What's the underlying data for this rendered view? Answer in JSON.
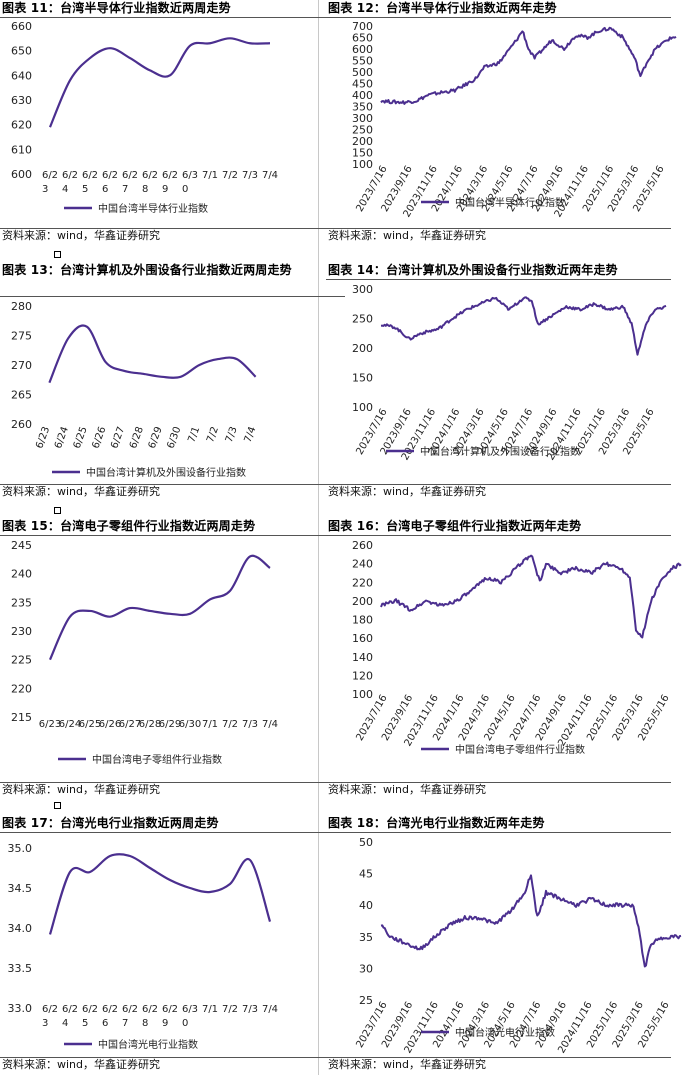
{
  "source_text": "资料来源：wind，华鑫证券研究",
  "line_color": "#4b2f8f",
  "charts": [
    {
      "id": "c11",
      "title": "图表 11：台湾半导体行业指数近两周走势",
      "chart_data": {
        "type": "line",
        "title": "图表 11：台湾半导体行业指数近两周走势",
        "categories": [
          "6/23",
          "6/24",
          "6/25",
          "6/26",
          "6/27",
          "6/28",
          "6/29",
          "6/30",
          "7/1",
          "7/2",
          "7/3",
          "7/4"
        ],
        "series": [
          {
            "name": "中国台湾半导体行业指数",
            "values": [
              619,
              638,
              647,
              651,
              647,
              642,
              640,
              652,
              653,
              655,
              653,
              653
            ]
          }
        ],
        "ylim": [
          600,
          660
        ],
        "yticks": [
          600,
          610,
          620,
          630,
          640,
          650,
          660
        ],
        "tick_labels": [
          [
            "6/2",
            "3"
          ],
          [
            "6/2",
            "4"
          ],
          [
            "6/2",
            "5"
          ],
          [
            "6/2",
            "6"
          ],
          [
            "6/2",
            "7"
          ],
          [
            "6/2",
            "8"
          ],
          [
            "6/2",
            "9"
          ],
          [
            "6/3",
            "0"
          ],
          [
            "7/1",
            ""
          ],
          [
            "7/2",
            ""
          ],
          [
            "7/3",
            ""
          ],
          [
            "7/4",
            ""
          ]
        ],
        "legend": "中国台湾半导体行业指数"
      }
    },
    {
      "id": "c12",
      "title": "图表 12：台湾半导体行业指数近两年走势",
      "chart_data": {
        "type": "line",
        "title": "图表 12：台湾半导体行业指数近两年走势",
        "x_date_labels": [
          "2023/7/16",
          "2023/9/16",
          "2023/11/16",
          "2024/1/16",
          "2024/3/16",
          "2024/5/16",
          "2024/7/16",
          "2024/9/16",
          "2024/11/16",
          "2025/1/16",
          "2025/3/16",
          "2025/5/16"
        ],
        "ylim": [
          100,
          700
        ],
        "yticks": [
          100,
          150,
          200,
          250,
          300,
          350,
          400,
          450,
          500,
          550,
          600,
          650,
          700
        ],
        "series": [
          {
            "name": "中国台湾半导体行业指数",
            "points": [
              [
                0,
                375
              ],
              [
                0.04,
                370
              ],
              [
                0.08,
                368
              ],
              [
                0.12,
                375
              ],
              [
                0.16,
                400
              ],
              [
                0.2,
                410
              ],
              [
                0.25,
                420
              ],
              [
                0.28,
                440
              ],
              [
                0.32,
                470
              ],
              [
                0.35,
                520
              ],
              [
                0.4,
                540
              ],
              [
                0.43,
                590
              ],
              [
                0.46,
                640
              ],
              [
                0.48,
                680
              ],
              [
                0.5,
                600
              ],
              [
                0.52,
                560
              ],
              [
                0.55,
                600
              ],
              [
                0.58,
                640
              ],
              [
                0.62,
                600
              ],
              [
                0.66,
                660
              ],
              [
                0.7,
                650
              ],
              [
                0.74,
                680
              ],
              [
                0.78,
                690
              ],
              [
                0.82,
                650
              ],
              [
                0.86,
                560
              ],
              [
                0.88,
                480
              ],
              [
                0.9,
                540
              ],
              [
                0.93,
                600
              ],
              [
                0.97,
                640
              ],
              [
                1.0,
                655
              ]
            ]
          }
        ],
        "legend": "中国台湾半导体行业指数"
      }
    },
    {
      "id": "c13",
      "title": "图表 13：台湾计算机及外围设备行业指数近两周走势",
      "chart_data": {
        "type": "line",
        "title": "图表 13：台湾计算机及外围设备行业指数近两周走势",
        "categories": [
          "6/23",
          "6/24",
          "6/25",
          "6/26",
          "6/27",
          "6/28",
          "6/29",
          "6/30",
          "7/1",
          "7/2",
          "7/3",
          "7/4"
        ],
        "series": [
          {
            "name": "中国台湾计算机及外围设备行业指数",
            "values": [
              267,
              274.5,
              276.5,
              270.5,
              269,
              268.5,
              268,
              268,
              270,
              271,
              271,
              268
            ]
          }
        ],
        "ylim": [
          260,
          280
        ],
        "yticks": [
          260,
          265,
          270,
          275,
          280
        ],
        "tick_labels": [
          [
            "6/23"
          ],
          [
            "6/24"
          ],
          [
            "6/25"
          ],
          [
            "6/26"
          ],
          [
            "6/27"
          ],
          [
            "6/28"
          ],
          [
            "6/29"
          ],
          [
            "6/30"
          ],
          [
            "7/1"
          ],
          [
            "7/2"
          ],
          [
            "7/3"
          ],
          [
            "7/4"
          ]
        ],
        "legend": "中国台湾计算机及外围设备行业指数"
      }
    },
    {
      "id": "c14",
      "title": "图表 14：台湾计算机及外围设备行业指数近两年走势",
      "chart_data": {
        "type": "line",
        "title": "图表 14：台湾计算机及外围设备行业指数近两年走势",
        "x_date_labels": [
          "2023/7/16",
          "2023/9/16",
          "2023/11/16",
          "2024/1/16",
          "2024/3/16",
          "2024/5/16",
          "2024/7/16",
          "2024/9/16",
          "2024/11/16",
          "2025/1/16",
          "2025/3/16",
          "2025/5/16"
        ],
        "ylim": [
          100,
          300
        ],
        "yticks": [
          100,
          150,
          200,
          250,
          300
        ],
        "series": [
          {
            "name": "中国台湾计算机及外围设备行业指数",
            "points": [
              [
                0,
                240
              ],
              [
                0.05,
                235
              ],
              [
                0.1,
                215
              ],
              [
                0.14,
                225
              ],
              [
                0.2,
                232
              ],
              [
                0.25,
                250
              ],
              [
                0.3,
                265
              ],
              [
                0.35,
                275
              ],
              [
                0.4,
                285
              ],
              [
                0.45,
                265
              ],
              [
                0.5,
                285
              ],
              [
                0.53,
                280
              ],
              [
                0.55,
                240
              ],
              [
                0.6,
                255
              ],
              [
                0.65,
                270
              ],
              [
                0.7,
                265
              ],
              [
                0.75,
                275
              ],
              [
                0.8,
                265
              ],
              [
                0.85,
                270
              ],
              [
                0.88,
                240
              ],
              [
                0.9,
                190
              ],
              [
                0.93,
                240
              ],
              [
                0.96,
                265
              ],
              [
                1.0,
                270
              ]
            ]
          }
        ],
        "legend": "中国台湾计算机及外围设备行业指数"
      }
    },
    {
      "id": "c15",
      "title": "图表 15：台湾电子零组件行业指数近两周走势",
      "chart_data": {
        "type": "line",
        "title": "图表 15：台湾电子零组件行业指数近两周走势",
        "categories": [
          "6/23",
          "6/24",
          "6/25",
          "6/26",
          "6/27",
          "6/28",
          "6/29",
          "6/30",
          "7/1",
          "7/2",
          "7/3",
          "7/4"
        ],
        "series": [
          {
            "name": "中国台湾电子零组件行业指数",
            "values": [
              225,
              232.5,
              233.5,
              232.5,
              234,
              233.5,
              233,
              233,
              235.5,
              237,
              243,
              241
            ]
          }
        ],
        "ylim": [
          215,
          245
        ],
        "yticks": [
          215,
          220,
          225,
          230,
          235,
          240,
          245
        ],
        "tick_labels": [
          [
            "6/23"
          ],
          [
            "6/24"
          ],
          [
            "6/25"
          ],
          [
            "6/26"
          ],
          [
            "6/27"
          ],
          [
            "6/28"
          ],
          [
            "6/29"
          ],
          [
            "6/30"
          ],
          [
            "7/1"
          ],
          [
            "7/2"
          ],
          [
            "7/3"
          ],
          [
            "7/4"
          ]
        ],
        "legend": "中国台湾电子零组件行业指数"
      }
    },
    {
      "id": "c16",
      "title": "图表 16：台湾电子零组件行业指数近两年走势",
      "chart_data": {
        "type": "line",
        "title": "图表 16：台湾电子零组件行业指数近两年走势",
        "x_date_labels": [
          "2023/7/16",
          "2023/9/16",
          "2023/11/16",
          "2024/1/16",
          "2024/3/16",
          "2024/5/16",
          "2024/7/16",
          "2024/9/16",
          "2024/11/16",
          "2025/1/16",
          "2025/3/16",
          "2025/5/16"
        ],
        "ylim": [
          100,
          260
        ],
        "yticks": [
          100,
          120,
          140,
          160,
          180,
          200,
          220,
          240,
          260
        ],
        "series": [
          {
            "name": "中国台湾电子零组件行业指数",
            "points": [
              [
                0,
                195
              ],
              [
                0.05,
                200
              ],
              [
                0.1,
                190
              ],
              [
                0.15,
                200
              ],
              [
                0.2,
                195
              ],
              [
                0.25,
                200
              ],
              [
                0.3,
                210
              ],
              [
                0.35,
                225
              ],
              [
                0.4,
                220
              ],
              [
                0.45,
                235
              ],
              [
                0.5,
                250
              ],
              [
                0.53,
                220
              ],
              [
                0.55,
                240
              ],
              [
                0.6,
                230
              ],
              [
                0.65,
                235
              ],
              [
                0.7,
                230
              ],
              [
                0.75,
                240
              ],
              [
                0.8,
                235
              ],
              [
                0.83,
                225
              ],
              [
                0.85,
                170
              ],
              [
                0.87,
                160
              ],
              [
                0.9,
                200
              ],
              [
                0.93,
                220
              ],
              [
                0.97,
                235
              ],
              [
                1.0,
                240
              ]
            ]
          }
        ],
        "legend": "中国台湾电子零组件行业指数"
      }
    },
    {
      "id": "c17",
      "title": "图表 17：台湾光电行业指数近两周走势",
      "chart_data": {
        "type": "line",
        "title": "图表 17：台湾光电行业指数近两周走势",
        "categories": [
          "6/23",
          "6/24",
          "6/25",
          "6/26",
          "6/27",
          "6/28",
          "6/29",
          "6/30",
          "7/1",
          "7/2",
          "7/3",
          "7/4"
        ],
        "series": [
          {
            "name": "中国台湾光电行业指数",
            "values": [
              33.92,
              34.7,
              34.7,
              34.9,
              34.9,
              34.75,
              34.6,
              34.5,
              34.45,
              34.55,
              34.85,
              34.08
            ]
          }
        ],
        "ylim": [
          33.0,
          35.0
        ],
        "yticks": [
          33.0,
          33.5,
          34.0,
          34.5,
          35.0
        ],
        "tick_labels": [
          [
            "6/2",
            "3"
          ],
          [
            "6/2",
            "4"
          ],
          [
            "6/2",
            "5"
          ],
          [
            "6/2",
            "6"
          ],
          [
            "6/2",
            "7"
          ],
          [
            "6/2",
            "8"
          ],
          [
            "6/2",
            "9"
          ],
          [
            "6/3",
            "0"
          ],
          [
            "7/1",
            ""
          ],
          [
            "7/2",
            ""
          ],
          [
            "7/3",
            ""
          ],
          [
            "7/4",
            ""
          ]
        ],
        "legend": "中国台湾光电行业指数"
      }
    },
    {
      "id": "c18",
      "title": "图表 18：台湾光电行业指数近两年走势",
      "chart_data": {
        "type": "line",
        "title": "图表 18：台湾光电行业指数近两年走势",
        "x_date_labels": [
          "2023/7/16",
          "2023/9/16",
          "2023/11/16",
          "2024/1/16",
          "2024/3/16",
          "2024/5/16",
          "2024/7/16",
          "2024/9/16",
          "2024/11/16",
          "2025/1/16",
          "2025/3/16",
          "2025/5/16"
        ],
        "ylim": [
          25,
          50
        ],
        "yticks": [
          25,
          30,
          35,
          40,
          45,
          50
        ],
        "series": [
          {
            "name": "中国台湾光电行业指数",
            "points": [
              [
                0,
                37
              ],
              [
                0.03,
                35
              ],
              [
                0.08,
                34
              ],
              [
                0.13,
                33
              ],
              [
                0.18,
                35
              ],
              [
                0.23,
                37
              ],
              [
                0.28,
                38
              ],
              [
                0.33,
                38
              ],
              [
                0.38,
                37
              ],
              [
                0.43,
                39
              ],
              [
                0.48,
                42
              ],
              [
                0.5,
                45
              ],
              [
                0.52,
                38
              ],
              [
                0.55,
                42
              ],
              [
                0.6,
                41
              ],
              [
                0.65,
                40
              ],
              [
                0.7,
                41
              ],
              [
                0.75,
                40
              ],
              [
                0.8,
                40
              ],
              [
                0.84,
                40
              ],
              [
                0.86,
                36
              ],
              [
                0.88,
                30
              ],
              [
                0.9,
                34
              ],
              [
                0.95,
                35
              ],
              [
                1.0,
                35
              ]
            ]
          }
        ],
        "legend": "中国台湾光电行业指数"
      }
    }
  ]
}
